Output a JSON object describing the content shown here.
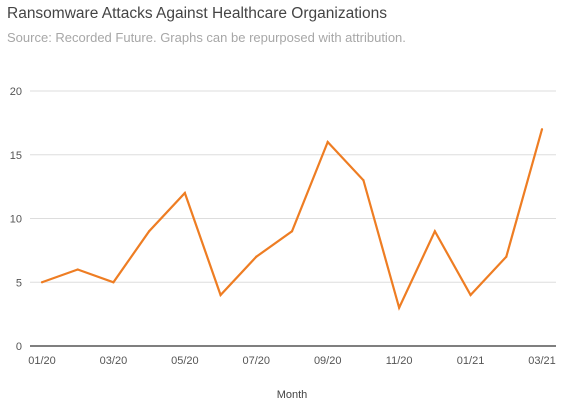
{
  "chart_data": {
    "type": "line",
    "title": "Ransomware Attacks Against Healthcare Organizations",
    "subtitle": "Source: Recorded Future. Graphs can be repurposed with attribution.",
    "xlabel": "Month",
    "ylabel": "",
    "categories": [
      "01/20",
      "02/20",
      "03/20",
      "04/20",
      "05/20",
      "06/20",
      "07/20",
      "08/20",
      "09/20",
      "10/20",
      "11/20",
      "12/20",
      "01/21",
      "02/21",
      "03/21"
    ],
    "x_tick_labels": [
      "01/20",
      "03/20",
      "05/20",
      "07/20",
      "09/20",
      "11/20",
      "01/21",
      "03/21"
    ],
    "series": [
      {
        "values": [
          5,
          6,
          5,
          9,
          12,
          4,
          7,
          9,
          16,
          13,
          3,
          9,
          4,
          7,
          17
        ],
        "color": "#ee7d23"
      }
    ],
    "ylim": [
      0,
      20
    ],
    "y_ticks": [
      0,
      5,
      10,
      15,
      20
    ],
    "grid": true,
    "legend": "none"
  }
}
